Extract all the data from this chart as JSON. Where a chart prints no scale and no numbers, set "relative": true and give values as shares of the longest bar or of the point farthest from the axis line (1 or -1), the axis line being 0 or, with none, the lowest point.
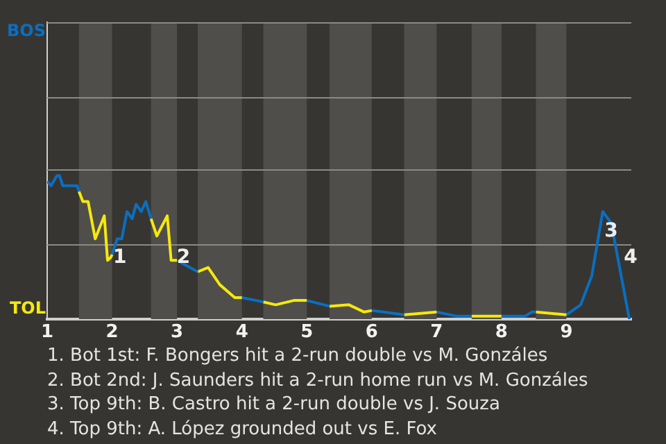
{
  "chart_data": {
    "type": "line",
    "marker": "none",
    "legend": false,
    "relative": true,
    "ref_lines": [
      {
        "axis": "y",
        "value": 0.52,
        "color": "#8c8a87"
      },
      {
        "axis": "y",
        "value": 1.04,
        "color": "#8c8a87"
      },
      {
        "axis": "y",
        "value": 1.55,
        "color": "#8c8a87"
      },
      {
        "axis": "y",
        "value": 2.07,
        "color": "#8c8a87"
      }
    ],
    "series": [
      {
        "color": "#0a6fc2",
        "x": [
          1,
          1.06,
          1.15,
          1.19,
          1.24,
          1.46,
          1.49
        ],
        "values": [
          0.96,
          0.93,
          1,
          1,
          0.93,
          0.93,
          0.89
        ]
      },
      {
        "color": "#f5e90c",
        "x": [
          1.49,
          1.55,
          1.63,
          1.74,
          1.88,
          1.93,
          1.98,
          2
        ],
        "values": [
          0.89,
          0.82,
          0.82,
          0.56,
          0.72,
          0.41,
          0.43,
          0.45
        ]
      },
      {
        "color": "#0a6fc2",
        "x": [
          2,
          2.08,
          2.15,
          2.23,
          2.31,
          2.37,
          2.45,
          2.52,
          2.6
        ],
        "values": [
          0.45,
          0.56,
          0.56,
          0.75,
          0.7,
          0.8,
          0.75,
          0.82,
          0.7
        ]
      },
      {
        "color": "#f5e90c",
        "x": [
          2.6,
          2.69,
          2.85,
          2.91,
          3
        ],
        "values": [
          0.7,
          0.58,
          0.72,
          0.41,
          0.41
        ]
      },
      {
        "color": "#0a6fc2",
        "x": [
          3,
          3.32
        ],
        "values": [
          0.41,
          0.33
        ]
      },
      {
        "color": "#f5e90c",
        "x": [
          3.32,
          3.48,
          3.66,
          3.89,
          4
        ],
        "values": [
          0.33,
          0.36,
          0.24,
          0.15,
          0.15
        ]
      },
      {
        "color": "#0a6fc2",
        "x": [
          4,
          4.22,
          4.33
        ],
        "values": [
          0.15,
          0.13,
          0.12
        ]
      },
      {
        "color": "#f5e90c",
        "x": [
          4.33,
          4.52,
          4.8,
          5
        ],
        "values": [
          0.12,
          0.1,
          0.13,
          0.13
        ]
      },
      {
        "color": "#0a6fc2",
        "x": [
          5,
          5.35
        ],
        "values": [
          0.13,
          0.09
        ]
      },
      {
        "color": "#f5e90c",
        "x": [
          5.35,
          5.65,
          5.88,
          6
        ],
        "values": [
          0.09,
          0.1,
          0.05,
          0.06
        ]
      },
      {
        "color": "#0a6fc2",
        "x": [
          6,
          6.5
        ],
        "values": [
          0.06,
          0.03
        ]
      },
      {
        "color": "#f5e90c",
        "x": [
          6.5,
          7
        ],
        "values": [
          0.03,
          0.05
        ]
      },
      {
        "color": "#0a6fc2",
        "x": [
          7,
          7.31,
          7.54
        ],
        "values": [
          0.05,
          0.02,
          0.02
        ]
      },
      {
        "color": "#f5e90c",
        "x": [
          7.54,
          8
        ],
        "values": [
          0.02,
          0.02
        ]
      },
      {
        "color": "#0a6fc2",
        "x": [
          8,
          8.36,
          8.47,
          8.53
        ],
        "values": [
          0.02,
          0.02,
          0.05,
          0.05
        ]
      },
      {
        "color": "#f5e90c",
        "x": [
          8.53,
          9
        ],
        "values": [
          0.05,
          0.03
        ]
      },
      {
        "color": "#0a6fc2",
        "x": [
          9,
          9.22,
          9.39,
          9.56,
          9.69,
          9.97
        ],
        "values": [
          0.03,
          0.1,
          0.3,
          0.75,
          0.67,
          0
        ]
      }
    ],
    "xlim": [
      1,
      10
    ],
    "xticks": [
      1,
      2,
      3,
      4,
      5,
      6,
      7,
      8,
      9
    ],
    "bands": [
      {
        "axis": "x",
        "from": 1.49,
        "to": 2,
        "color": "#504e4b"
      },
      {
        "axis": "x",
        "from": 2.6,
        "to": 3,
        "color": "#504e4b"
      },
      {
        "axis": "x",
        "from": 3.32,
        "to": 4,
        "color": "#504e4b"
      },
      {
        "axis": "x",
        "from": 4.33,
        "to": 5,
        "color": "#504e4b"
      },
      {
        "axis": "x",
        "from": 5.35,
        "to": 6,
        "color": "#504e4b"
      },
      {
        "axis": "x",
        "from": 6.5,
        "to": 7,
        "color": "#504e4b"
      },
      {
        "axis": "x",
        "from": 7.54,
        "to": 8,
        "color": "#504e4b"
      },
      {
        "axis": "x",
        "from": 8.53,
        "to": 9,
        "color": "#504e4b"
      }
    ],
    "annotations": [
      "BOS",
      "TOL",
      {
        "text": "1",
        "x": 1.93,
        "y": 0.41
      },
      {
        "text": "2",
        "x": 2.91,
        "y": 0.41
      },
      {
        "text": "3",
        "x": 9.5,
        "y": 0.59
      },
      {
        "text": "4",
        "x": 9.8,
        "y": 0.41
      },
      "1. Bot 1st: F. Bongers hit a 2-run double vs M. Gonzáles",
      "2. Bot 2nd: J. Saunders hit a 2-run home run vs M. Gonzáles",
      "3. Top 9th: B. Castro hit a 2-run double vs J. Souza",
      "4. Top 9th: A. López grounded out vs E. Fox"
    ]
  }
}
